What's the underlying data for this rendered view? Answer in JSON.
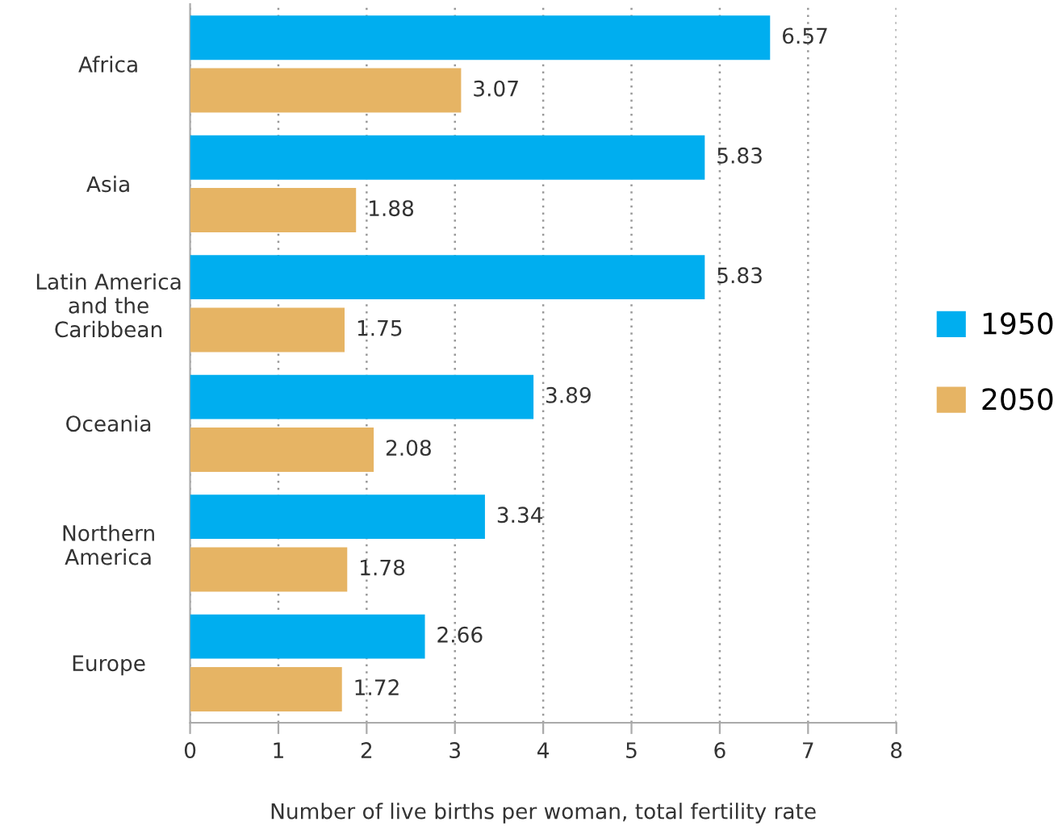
{
  "chart_data": {
    "type": "bar",
    "orientation": "horizontal",
    "xlabel": "Number of live births per woman, total fertility rate",
    "categories": [
      "Africa",
      "Asia",
      "Latin America\nand the\nCaribbean",
      "Oceania",
      "Northern\nAmerica",
      "Europe"
    ],
    "series": [
      {
        "name": "1950",
        "color": "#00aeef",
        "values": [
          6.57,
          5.83,
          5.83,
          3.89,
          3.34,
          2.66
        ]
      },
      {
        "name": "2050",
        "color": "#e6b464",
        "values": [
          3.07,
          1.88,
          1.75,
          2.08,
          1.78,
          1.72
        ]
      }
    ],
    "xlim": [
      0,
      8
    ],
    "xticks": [
      0,
      1,
      2,
      3,
      4,
      5,
      6,
      7,
      8
    ],
    "grid": "x",
    "legend": "right",
    "data_labels": true
  }
}
